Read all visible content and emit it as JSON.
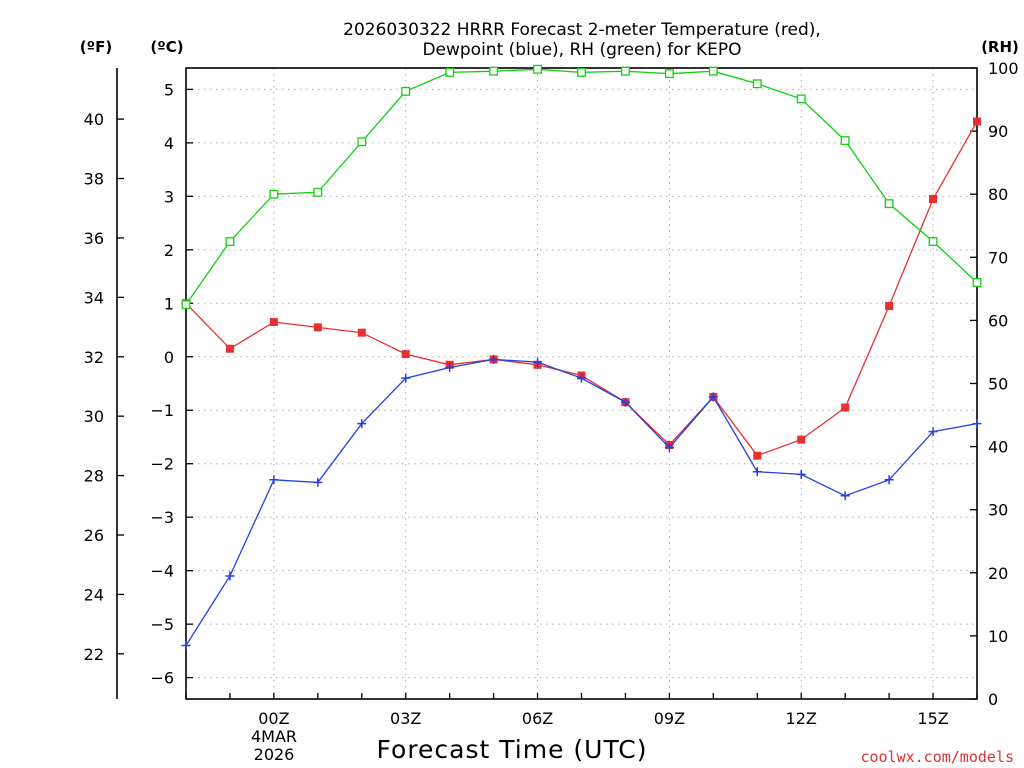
{
  "chart_data": {
    "type": "line",
    "title_line1": "2026030322 HRRR Forecast 2-meter Temperature (red),",
    "title_line2": "Dewpoint (blue), RH (green) for KEPO",
    "xlabel": "Forecast Time (UTC)",
    "unit_f": "(ºF)",
    "unit_c": "(ºC)",
    "unit_rh": "(RH)",
    "credit": "coolwx.com/models",
    "date_line1": "4MAR",
    "date_line2": "2026",
    "x": [
      -2,
      -1,
      0,
      1,
      2,
      3,
      4,
      5,
      6,
      7,
      8,
      9,
      10,
      11,
      12,
      13,
      14,
      15,
      16
    ],
    "x_ticks": [
      {
        "hour": 0,
        "label": "00Z"
      },
      {
        "hour": 3,
        "label": "03Z"
      },
      {
        "hour": 6,
        "label": "06Z"
      },
      {
        "hour": 9,
        "label": "09Z"
      },
      {
        "hour": 12,
        "label": "12Z"
      },
      {
        "hour": 15,
        "label": "15Z"
      }
    ],
    "xlim": [
      -2,
      16
    ],
    "c_ticks": [
      -6,
      -5,
      -4,
      -3,
      -2,
      -1,
      0,
      1,
      2,
      3,
      4,
      5
    ],
    "c_tick_labels": [
      "−6",
      "−5",
      "−4",
      "−3",
      "−2",
      "−1",
      "0",
      "1",
      "2",
      "3",
      "4",
      "5"
    ],
    "c_lim": [
      -6.4,
      5.4
    ],
    "f_ticks": [
      22,
      24,
      26,
      28,
      30,
      32,
      34,
      36,
      38,
      40
    ],
    "f_tick_labels": [
      "22",
      "24",
      "26",
      "28",
      "30",
      "32",
      "34",
      "36",
      "38",
      "40"
    ],
    "rh_ticks": [
      0,
      10,
      20,
      30,
      40,
      50,
      60,
      70,
      80,
      90,
      100
    ],
    "rh_tick_labels": [
      "0",
      "10",
      "20",
      "30",
      "40",
      "50",
      "60",
      "70",
      "80",
      "90",
      "100"
    ],
    "rh_lim": [
      0,
      100
    ],
    "series": [
      {
        "name": "Temperature",
        "unit": "C",
        "color": "#e83030",
        "marker": "filled-square",
        "values": [
          1.0,
          0.15,
          0.65,
          0.55,
          0.45,
          0.05,
          -0.15,
          -0.05,
          -0.15,
          -0.35,
          -0.85,
          -1.65,
          -0.75,
          -1.85,
          -1.55,
          -0.95,
          0.95,
          2.95,
          4.4
        ]
      },
      {
        "name": "Dewpoint",
        "unit": "C",
        "color": "#2040e8",
        "marker": "plus",
        "values": [
          -5.4,
          -4.1,
          -2.3,
          -2.35,
          -1.25,
          -0.4,
          -0.2,
          -0.05,
          -0.1,
          -0.4,
          -0.85,
          -1.7,
          -0.75,
          -2.15,
          -2.2,
          -2.6,
          -2.3,
          -1.4,
          -1.25
        ]
      },
      {
        "name": "RH",
        "unit": "%",
        "color": "#10d010",
        "marker": "open-square",
        "values": [
          62.5,
          72.5,
          80,
          80.3,
          88.3,
          96.3,
          99.3,
          99.5,
          99.8,
          99.3,
          99.5,
          99.1,
          99.5,
          97.5,
          95.1,
          88.5,
          78.5,
          72.5,
          66
        ]
      }
    ]
  }
}
